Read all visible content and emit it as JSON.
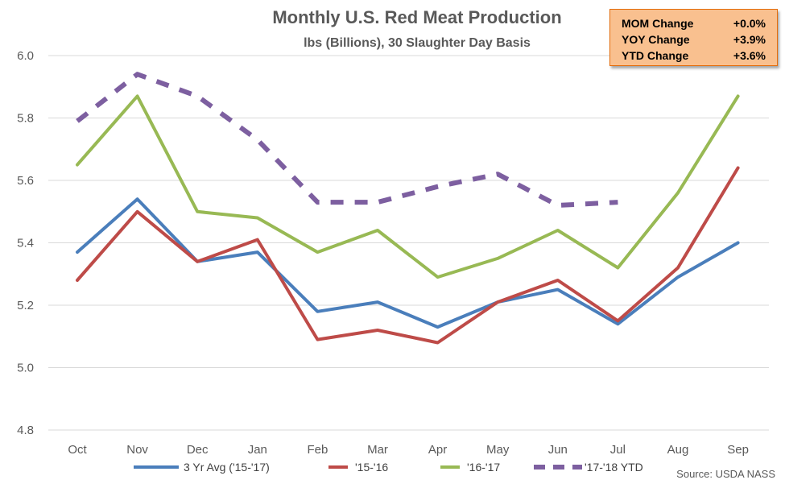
{
  "chart_data": {
    "type": "line",
    "title": "Monthly U.S. Red Meat Production",
    "subtitle": "lbs (Billions), 30 Slaughter Day Basis",
    "categories": [
      "Oct",
      "Nov",
      "Dec",
      "Jan",
      "Feb",
      "Mar",
      "Apr",
      "May",
      "Jun",
      "Jul",
      "Aug",
      "Sep"
    ],
    "ylim": [
      4.8,
      6.0
    ],
    "yticks": [
      "4.8",
      "5.0",
      "5.2",
      "5.4",
      "5.6",
      "5.8",
      "6.0"
    ],
    "grid": true,
    "legend_position": "bottom",
    "series": [
      {
        "name": "3 Yr Avg ('15-'17)",
        "color": "#4a7ebb",
        "dashed": false,
        "values": [
          5.37,
          5.54,
          5.34,
          5.37,
          5.18,
          5.21,
          5.13,
          5.21,
          5.25,
          5.14,
          5.29,
          5.4
        ]
      },
      {
        "name": "'15-'16",
        "color": "#be4b48",
        "dashed": false,
        "values": [
          5.28,
          5.5,
          5.34,
          5.41,
          5.09,
          5.12,
          5.08,
          5.21,
          5.28,
          5.15,
          5.32,
          5.64
        ]
      },
      {
        "name": "'16-'17",
        "color": "#98b954",
        "dashed": false,
        "values": [
          5.65,
          5.87,
          5.5,
          5.48,
          5.37,
          5.44,
          5.29,
          5.35,
          5.44,
          5.32,
          5.56,
          5.87
        ]
      },
      {
        "name": "'17-'18 YTD",
        "color": "#7d5fa0",
        "dashed": true,
        "values": [
          5.79,
          5.94,
          5.87,
          5.73,
          5.53,
          5.53,
          5.58,
          5.62,
          5.52,
          5.53,
          null,
          null
        ]
      }
    ]
  },
  "stats": [
    {
      "label": "MOM Change",
      "value": "+0.0%"
    },
    {
      "label": "YOY Change",
      "value": "+3.9%"
    },
    {
      "label": "YTD Change",
      "value": "+3.6%"
    }
  ],
  "source": "Source: USDA NASS"
}
